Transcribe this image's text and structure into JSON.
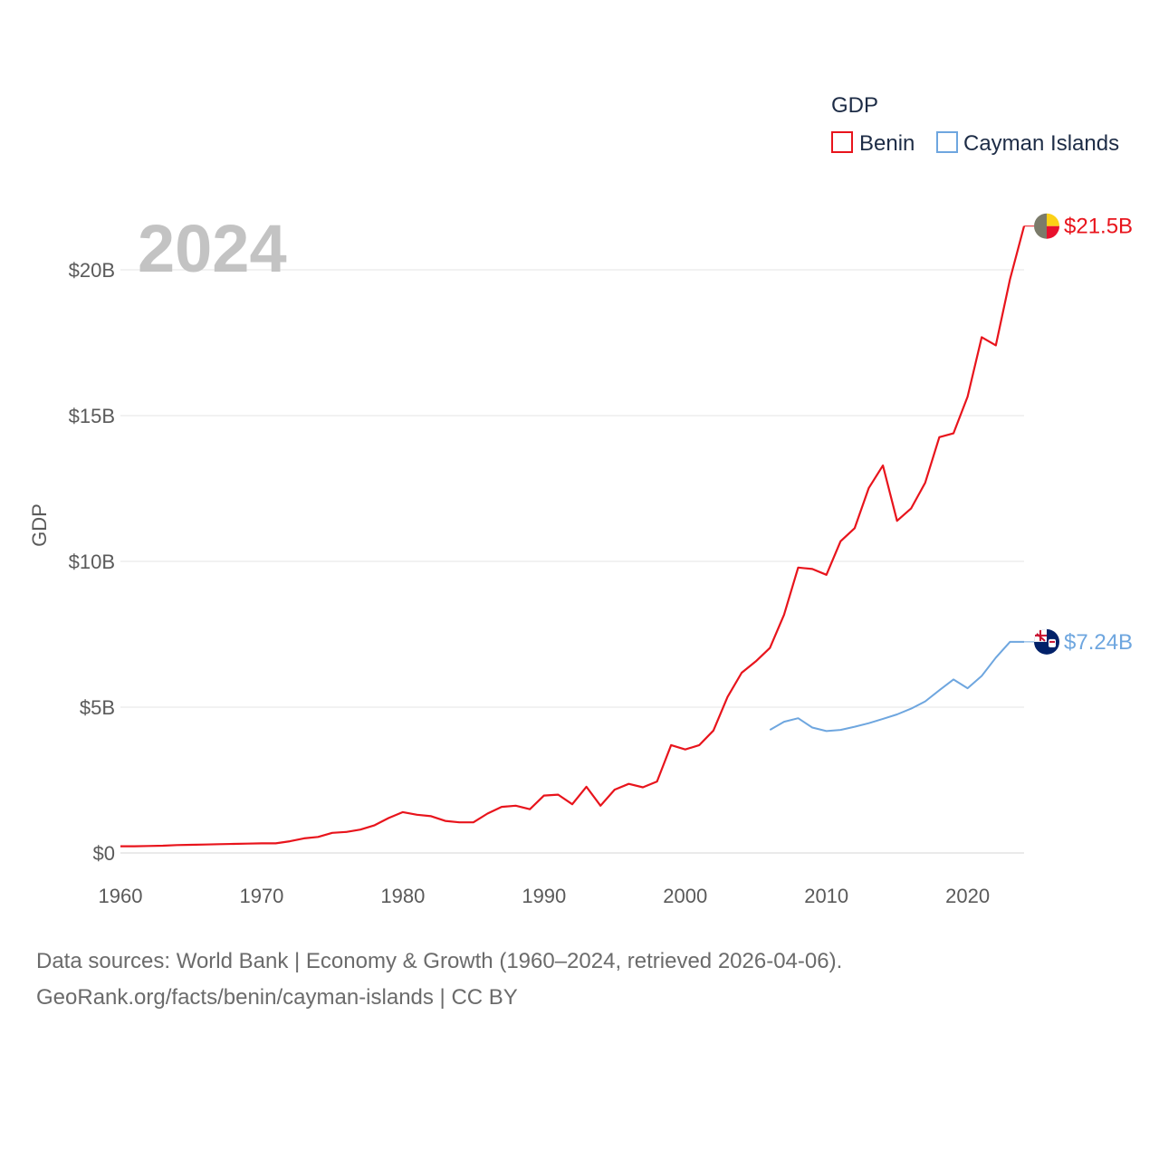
{
  "chart_data": {
    "type": "line",
    "year_label": "2024",
    "ylabel": "GDP",
    "legend_title": "GDP",
    "xlim": [
      1960,
      2024
    ],
    "ylim": [
      0,
      21.5
    ],
    "x_ticks": [
      1960,
      1970,
      1980,
      1990,
      2000,
      2010,
      2020
    ],
    "x_tick_labels": [
      "1960",
      "1970",
      "1980",
      "1990",
      "2000",
      "2010",
      "2020"
    ],
    "y_ticks": [
      0,
      5,
      10,
      15,
      20
    ],
    "y_tick_labels": [
      "$0",
      "$5B",
      "$10B",
      "$15B",
      "$20B"
    ],
    "units": "billion USD",
    "series": [
      {
        "name": "Benin",
        "color": "#e8141c",
        "end_label": "$21.5B",
        "flag_colors": [
          "#7b7b6a",
          "#fcd116",
          "#e8112d"
        ],
        "x": [
          1960,
          1961,
          1962,
          1963,
          1964,
          1965,
          1966,
          1967,
          1968,
          1969,
          1970,
          1971,
          1972,
          1973,
          1974,
          1975,
          1976,
          1977,
          1978,
          1979,
          1980,
          1981,
          1982,
          1983,
          1984,
          1985,
          1986,
          1987,
          1988,
          1989,
          1990,
          1991,
          1992,
          1993,
          1994,
          1995,
          1996,
          1997,
          1998,
          1999,
          2000,
          2001,
          2002,
          2003,
          2004,
          2005,
          2006,
          2007,
          2008,
          2009,
          2010,
          2011,
          2012,
          2013,
          2014,
          2015,
          2016,
          2017,
          2018,
          2019,
          2020,
          2021,
          2022,
          2023,
          2024
        ],
        "values": [
          0.23,
          0.23,
          0.24,
          0.25,
          0.27,
          0.28,
          0.29,
          0.3,
          0.31,
          0.32,
          0.33,
          0.33,
          0.4,
          0.5,
          0.55,
          0.69,
          0.72,
          0.8,
          0.95,
          1.2,
          1.4,
          1.31,
          1.26,
          1.1,
          1.05,
          1.05,
          1.35,
          1.58,
          1.62,
          1.5,
          1.97,
          2.0,
          1.67,
          2.27,
          1.62,
          2.17,
          2.37,
          2.25,
          2.45,
          3.7,
          3.55,
          3.7,
          4.2,
          5.35,
          6.18,
          6.57,
          7.03,
          8.17,
          9.79,
          9.74,
          9.54,
          10.69,
          11.14,
          12.52,
          13.29,
          11.39,
          11.82,
          12.7,
          14.26,
          14.39,
          15.65,
          17.69,
          17.41,
          19.67,
          21.5
        ]
      },
      {
        "name": "Cayman Islands",
        "color": "#6ea6df",
        "end_label": "$7.24B",
        "flag_colors": [
          "#012169",
          "#c8102e",
          "#ffffff"
        ],
        "x": [
          2006,
          2007,
          2008,
          2009,
          2010,
          2011,
          2012,
          2013,
          2014,
          2015,
          2016,
          2017,
          2018,
          2019,
          2020,
          2021,
          2022,
          2023,
          2024
        ],
        "values": [
          4.22,
          4.5,
          4.62,
          4.3,
          4.18,
          4.22,
          4.33,
          4.45,
          4.6,
          4.75,
          4.95,
          5.2,
          5.58,
          5.95,
          5.65,
          6.07,
          6.7,
          7.24,
          7.24
        ]
      }
    ]
  },
  "footer": {
    "line1": "Data sources: World Bank | Economy & Growth (1960–2024, retrieved 2026-04-06).",
    "line2": "GeoRank.org/facts/benin/cayman-islands | CC BY"
  }
}
